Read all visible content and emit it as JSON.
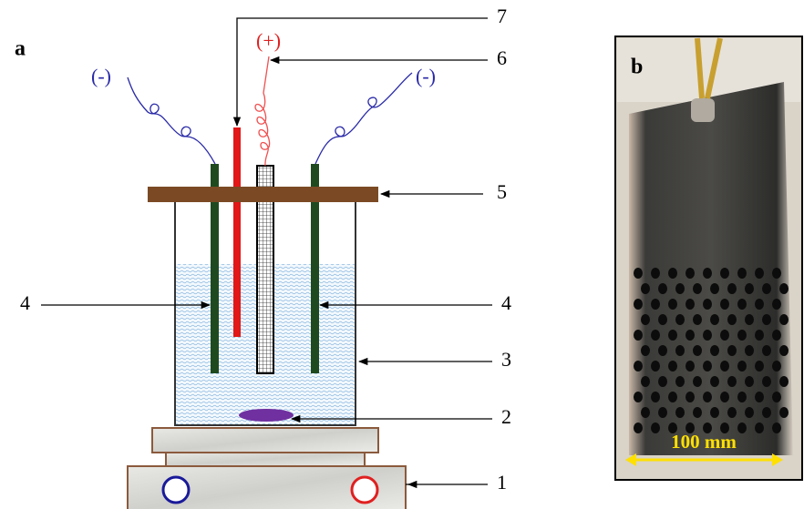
{
  "panel_a": {
    "label": "a",
    "terminals": [
      "(-)",
      "(+)",
      "(-)"
    ],
    "callouts": [
      "1",
      "2",
      "3",
      "4",
      "4",
      "5",
      "6",
      "7"
    ]
  },
  "panel_b": {
    "label": "b",
    "scale_bar": "100 mm"
  }
}
